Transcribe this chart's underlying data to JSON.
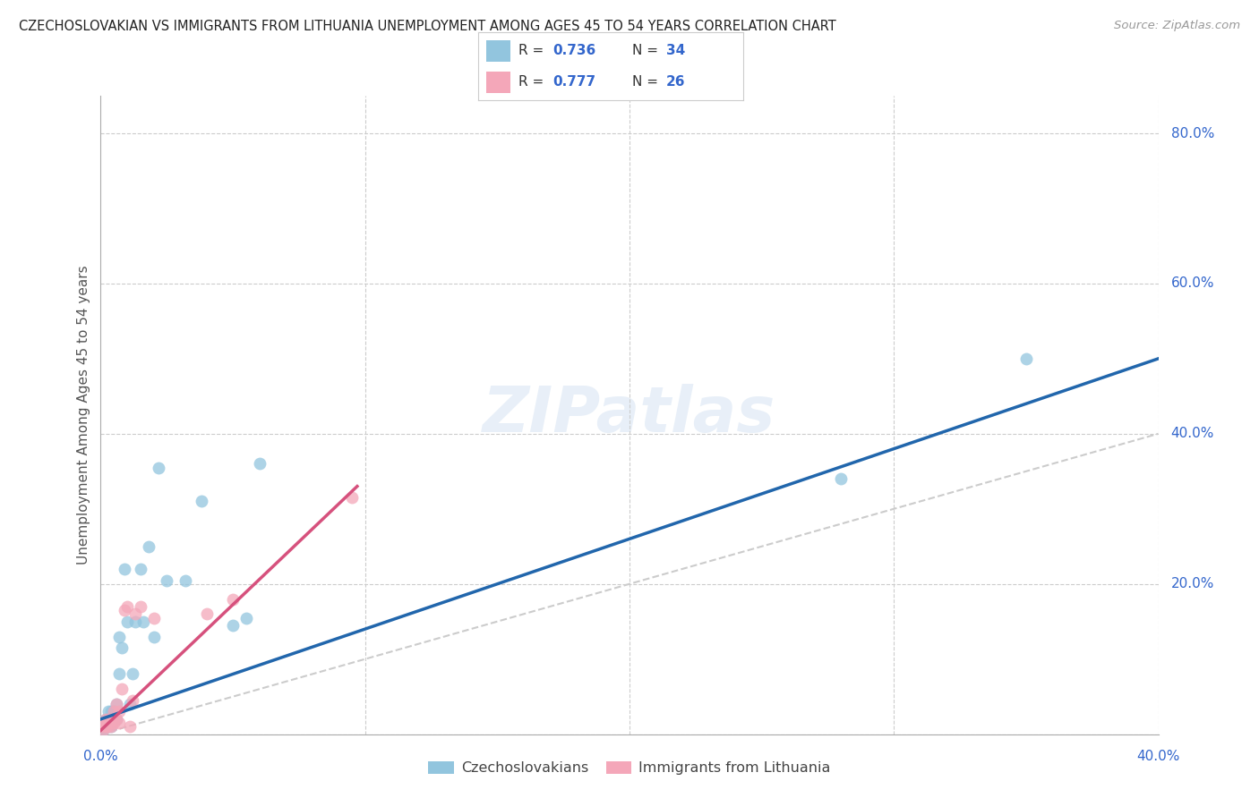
{
  "title": "CZECHOSLOVAKIAN VS IMMIGRANTS FROM LITHUANIA UNEMPLOYMENT AMONG AGES 45 TO 54 YEARS CORRELATION CHART",
  "source": "Source: ZipAtlas.com",
  "ylabel": "Unemployment Among Ages 45 to 54 years",
  "xlim": [
    0.0,
    0.4
  ],
  "ylim": [
    0.0,
    0.85
  ],
  "ytick_values": [
    0.0,
    0.2,
    0.4,
    0.6,
    0.8
  ],
  "ytick_labels": [
    "",
    "20.0%",
    "40.0%",
    "60.0%",
    "80.0%"
  ],
  "xtick_values": [
    0.0,
    0.1,
    0.2,
    0.3,
    0.4
  ],
  "blue_color": "#92c5de",
  "pink_color": "#f4a7b9",
  "blue_line_color": "#2166ac",
  "pink_line_color": "#d6517d",
  "diagonal_color": "#cccccc",
  "axis_color": "#3366cc",
  "watermark": "ZIPatlas",
  "background_color": "#ffffff",
  "grid_color": "#cccccc",
  "czechs_x": [
    0.001,
    0.001,
    0.002,
    0.002,
    0.003,
    0.003,
    0.003,
    0.004,
    0.004,
    0.005,
    0.005,
    0.006,
    0.006,
    0.007,
    0.007,
    0.008,
    0.009,
    0.01,
    0.011,
    0.012,
    0.013,
    0.015,
    0.016,
    0.018,
    0.02,
    0.022,
    0.025,
    0.032,
    0.038,
    0.05,
    0.055,
    0.06,
    0.28,
    0.35
  ],
  "czechs_y": [
    0.005,
    0.01,
    0.01,
    0.02,
    0.01,
    0.02,
    0.03,
    0.01,
    0.03,
    0.02,
    0.03,
    0.02,
    0.04,
    0.08,
    0.13,
    0.115,
    0.22,
    0.15,
    0.04,
    0.08,
    0.15,
    0.22,
    0.15,
    0.25,
    0.13,
    0.355,
    0.205,
    0.205,
    0.31,
    0.145,
    0.155,
    0.36,
    0.34,
    0.5
  ],
  "lith_x": [
    0.001,
    0.001,
    0.002,
    0.002,
    0.002,
    0.003,
    0.003,
    0.004,
    0.004,
    0.005,
    0.005,
    0.006,
    0.006,
    0.007,
    0.007,
    0.008,
    0.009,
    0.01,
    0.011,
    0.012,
    0.013,
    0.015,
    0.02,
    0.04,
    0.05,
    0.095
  ],
  "lith_y": [
    0.005,
    0.01,
    0.01,
    0.015,
    0.02,
    0.01,
    0.02,
    0.01,
    0.02,
    0.015,
    0.03,
    0.02,
    0.04,
    0.015,
    0.03,
    0.06,
    0.165,
    0.17,
    0.01,
    0.045,
    0.16,
    0.17,
    0.155,
    0.16,
    0.18,
    0.315
  ],
  "blue_line_x0": 0.0,
  "blue_line_y0": 0.02,
  "blue_line_x1": 0.4,
  "blue_line_y1": 0.5,
  "pink_line_x0": 0.0,
  "pink_line_y0": 0.005,
  "pink_line_x1": 0.097,
  "pink_line_y1": 0.33
}
